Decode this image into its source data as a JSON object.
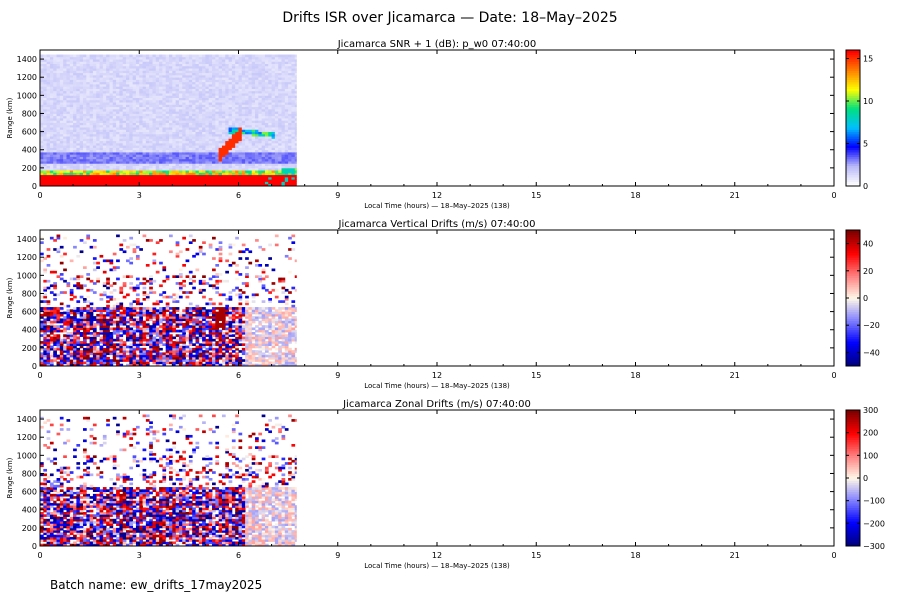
{
  "main_title": "Drifts ISR over Jicamarca — Date: 18–May–2025",
  "batch_name": "Batch name: ew_drifts_17may2025",
  "chart_data": [
    {
      "type": "heatmap",
      "title": "Jicamarca SNR + 1 (dB): p_w0 07:40:00",
      "xlabel": "Local Time (hours) — 18–May–2025 (138)",
      "ylabel": "Range (km)",
      "xlim": [
        0,
        24
      ],
      "ylim": [
        0,
        1500
      ],
      "x_ticks": [
        "0",
        "3",
        "6",
        "9",
        "12",
        "15",
        "18",
        "21",
        "0"
      ],
      "y_ticks": [
        "0",
        "200",
        "400",
        "600",
        "800",
        "1000",
        "1200",
        "1400"
      ],
      "data_end_hour": 7.75,
      "colorbar": {
        "range": [
          0,
          16
        ],
        "ticks": [
          "0",
          "5",
          "10",
          "15"
        ],
        "colormap": "rainbow",
        "colors": [
          "#ffffff",
          "#b8b8f8",
          "#0000ff",
          "#00c0ff",
          "#00e080",
          "#ffff00",
          "#ff8000",
          "#ff0000"
        ]
      }
    },
    {
      "type": "heatmap",
      "title": "Jicamarca Vertical Drifts (m/s) 07:40:00",
      "xlabel": "Local Time (hours) — 18–May–2025 (138)",
      "ylabel": "Range (km)",
      "xlim": [
        0,
        24
      ],
      "ylim": [
        0,
        1500
      ],
      "x_ticks": [
        "0",
        "3",
        "6",
        "9",
        "12",
        "15",
        "18",
        "21",
        "0"
      ],
      "y_ticks": [
        "0",
        "200",
        "400",
        "600",
        "800",
        "1000",
        "1200",
        "1400"
      ],
      "data_end_hour": 7.75,
      "colorbar": {
        "range": [
          -50,
          50
        ],
        "ticks": [
          "−40",
          "−20",
          "0",
          "20",
          "40"
        ],
        "colormap": "diverging blue-white-red",
        "colors": [
          "#000080",
          "#0000ff",
          "#8080ff",
          "#fff8e8",
          "#ff8080",
          "#ff0000",
          "#800000"
        ]
      }
    },
    {
      "type": "heatmap",
      "title": "Jicamarca Zonal Drifts (m/s) 07:40:00",
      "xlabel": "Local Time (hours) — 18–May–2025 (138)",
      "ylabel": "Range (km)",
      "xlim": [
        0,
        24
      ],
      "ylim": [
        0,
        1500
      ],
      "x_ticks": [
        "0",
        "3",
        "6",
        "9",
        "12",
        "15",
        "18",
        "21",
        "0"
      ],
      "y_ticks": [
        "0",
        "200",
        "400",
        "600",
        "800",
        "1000",
        "1200",
        "1400"
      ],
      "data_end_hour": 7.75,
      "colorbar": {
        "range": [
          -300,
          300
        ],
        "ticks": [
          "−300",
          "−200",
          "−100",
          "0",
          "100",
          "200",
          "300"
        ],
        "colormap": "diverging blue-white-red",
        "colors": [
          "#000080",
          "#0000ff",
          "#8080ff",
          "#fff8e8",
          "#ff8080",
          "#ff0000",
          "#800000"
        ]
      }
    }
  ]
}
